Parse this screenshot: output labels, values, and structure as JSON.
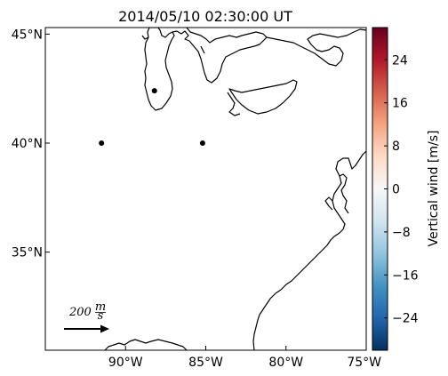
{
  "title": "2014/05/10 02:30:00 UT",
  "map": {
    "lon_range": [
      -95,
      -75
    ],
    "lat_range": [
      30.5,
      45.3
    ],
    "x_ticks": [
      {
        "lon": -90,
        "label": "90°W"
      },
      {
        "lon": -85,
        "label": "85°W"
      },
      {
        "lon": -80,
        "label": "80°W"
      },
      {
        "lon": -75,
        "label": "75°W"
      }
    ],
    "y_ticks": [
      {
        "lat": 45,
        "label": "45°N"
      },
      {
        "lat": 40,
        "label": "40°N"
      },
      {
        "lat": 35,
        "label": "35°N"
      }
    ],
    "stations": [
      {
        "lon": -88.2,
        "lat": 42.4
      },
      {
        "lon": -91.5,
        "lat": 40.0
      },
      {
        "lon": -85.2,
        "lat": 40.0
      }
    ],
    "reference_arrow": {
      "label_value": "200",
      "label_unit_num": "m",
      "label_unit_den": "s"
    }
  },
  "colorbar": {
    "label": "Vertical wind [m/s]",
    "range": [
      -30,
      30
    ],
    "ticks": [
      "24",
      "16",
      "8",
      "0",
      "−8",
      "−16",
      "−24"
    ],
    "tick_values": [
      24,
      16,
      8,
      0,
      -8,
      -16,
      -24
    ],
    "colormap": "RdBu_r",
    "colors": [
      "#053061",
      "#2166ac",
      "#4393c3",
      "#92c5de",
      "#d1e5f0",
      "#f7f7f7",
      "#fddbc7",
      "#f4a582",
      "#d6604d",
      "#b2182b",
      "#67001f"
    ]
  }
}
